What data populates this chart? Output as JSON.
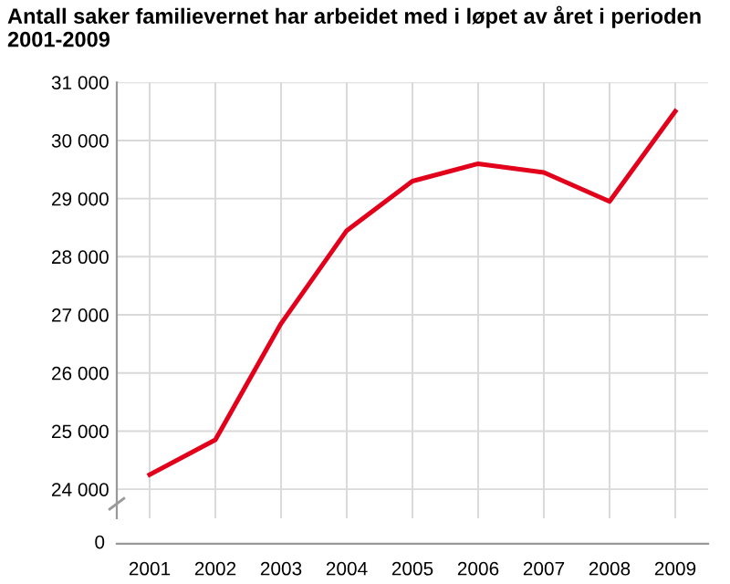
{
  "chart_data": [
    {
      "type": "line",
      "title": "Antall saker familievernet har arbeidet med i løpet av året i perioden 2001-2009",
      "categories": [
        "2001",
        "2002",
        "2003",
        "2004",
        "2005",
        "2006",
        "2007",
        "2008",
        "2009"
      ],
      "series": [
        {
          "color": "#e2001a",
          "values": [
            24250,
            24850,
            26850,
            28450,
            29300,
            29600,
            29450,
            28950,
            30500
          ]
        }
      ],
      "ylim": [
        23500,
        31000
      ],
      "yticks": [
        {
          "value": 24000,
          "label": "24 000"
        },
        {
          "value": 25000,
          "label": "25 000"
        },
        {
          "value": 26000,
          "label": "26 000"
        },
        {
          "value": 27000,
          "label": "27 000"
        },
        {
          "value": 28000,
          "label": "28 000"
        },
        {
          "value": 29000,
          "label": "29 000"
        },
        {
          "value": 30000,
          "label": "30 000"
        },
        {
          "value": 31000,
          "label": "31 000"
        }
      ],
      "grid": true,
      "marker": "none",
      "line_style": "solid"
    },
    {
      "type": "other",
      "annotations": [
        "0"
      ]
    }
  ]
}
